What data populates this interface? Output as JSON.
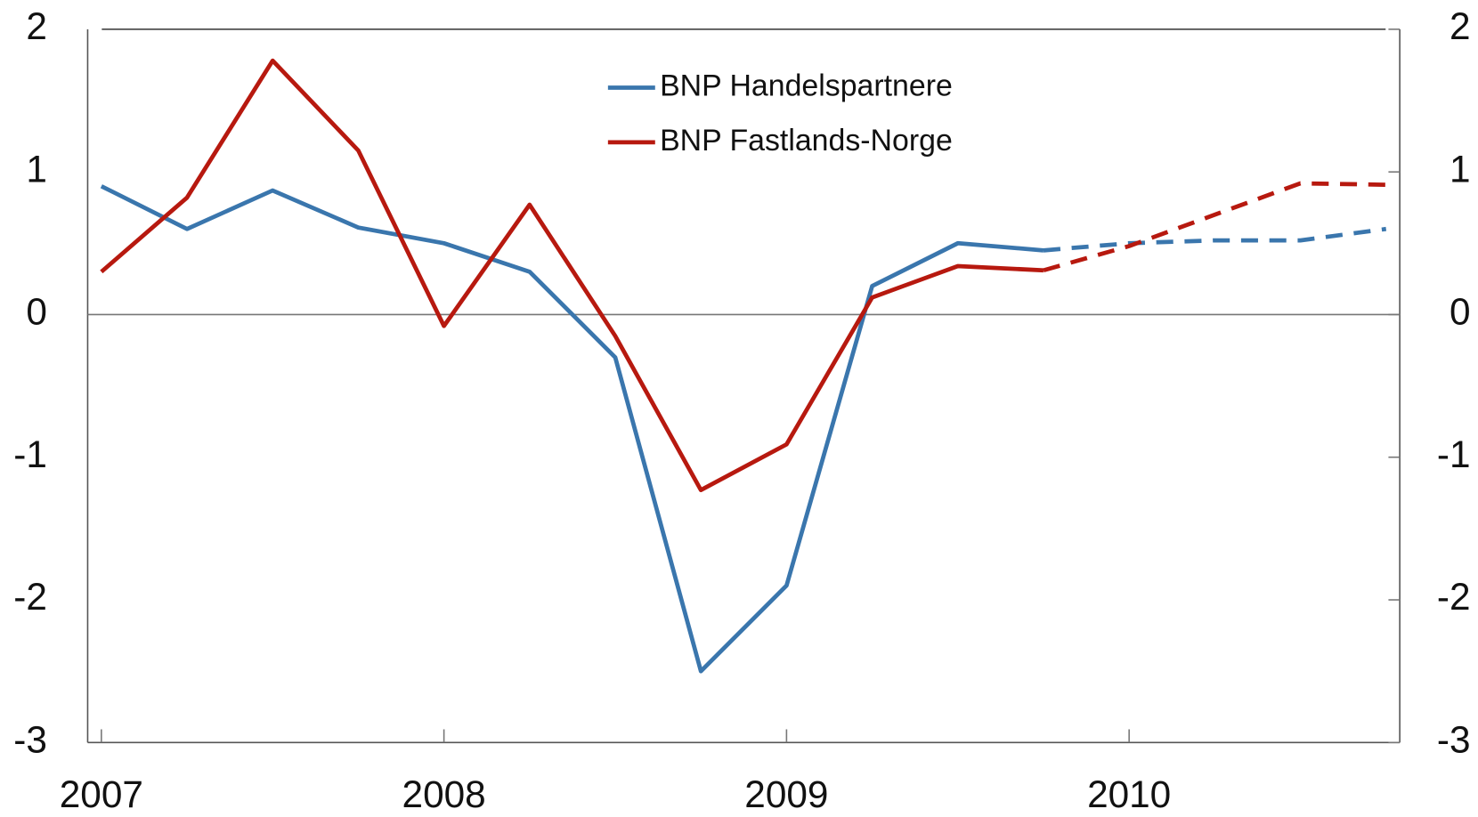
{
  "chart_data": {
    "type": "line",
    "x": [
      2007,
      2007.25,
      2007.5,
      2007.75,
      2008,
      2008.25,
      2008.5,
      2008.75,
      2009,
      2009.25,
      2009.5,
      2009.75,
      2010,
      2010.25,
      2010.5,
      2010.75
    ],
    "series": [
      {
        "name": "BNP Handelspartnere",
        "color": "#3a76ad",
        "values": [
          0.9,
          0.6,
          0.87,
          0.61,
          0.5,
          0.3,
          -0.3,
          -2.5,
          -1.9,
          0.2,
          0.5,
          0.45,
          0.5,
          0.52,
          0.52,
          0.6
        ]
      },
      {
        "name": "BNP Fastlands-Norge",
        "color": "#b7190f",
        "values": [
          0.3,
          0.82,
          1.78,
          1.15,
          -0.08,
          0.77,
          -0.15,
          -1.23,
          -0.91,
          0.12,
          0.34,
          0.31,
          0.48,
          0.7,
          0.92,
          0.91
        ]
      }
    ],
    "forecast_from_x": 2009.75,
    "xlim": [
      2006.96,
      2010.79
    ],
    "xticks": [
      2007,
      2008,
      2009,
      2010
    ],
    "ylim": [
      -3,
      2
    ],
    "yticks": [
      -3,
      -2,
      -1,
      0,
      1,
      2
    ],
    "y2lim": [
      -3,
      2
    ],
    "y2ticks": [
      -3,
      -2,
      -1,
      0,
      1,
      2
    ],
    "legend": "top"
  }
}
